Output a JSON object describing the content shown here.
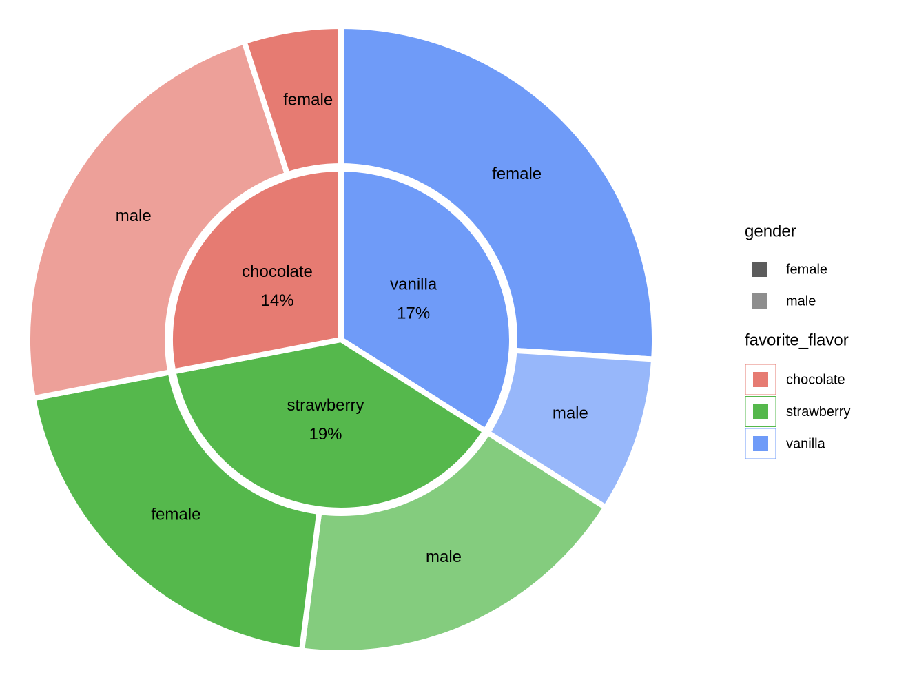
{
  "chart_data": {
    "type": "sunburst",
    "flavors": [
      {
        "name": "vanilla",
        "value": 17,
        "value_label": "17%",
        "color": "#6f9bf8",
        "genders": [
          {
            "name": "female",
            "value": 13
          },
          {
            "name": "male",
            "value": 4
          }
        ]
      },
      {
        "name": "strawberry",
        "value": 19,
        "value_label": "19%",
        "color": "#55b84c",
        "genders": [
          {
            "name": "male",
            "value": 9
          },
          {
            "name": "female",
            "value": 10
          }
        ]
      },
      {
        "name": "chocolate",
        "value": 14,
        "value_label": "14%",
        "color": "#e67b72",
        "genders": [
          {
            "name": "male",
            "value": 11.5
          },
          {
            "name": "female",
            "value": 2.5
          }
        ]
      }
    ],
    "gender_opacity": {
      "female": 1,
      "male": 0.72
    },
    "legend": {
      "gender": {
        "title": "gender",
        "entries": [
          "female",
          "male"
        ],
        "colors": [
          "#5c5c5c",
          "#8e8e8e"
        ]
      },
      "flavor": {
        "title": "favorite_flavor",
        "entries": [
          "chocolate",
          "strawberry",
          "vanilla"
        ],
        "colors": [
          "#e67b72",
          "#55b84c",
          "#6f9bf8"
        ]
      }
    }
  }
}
